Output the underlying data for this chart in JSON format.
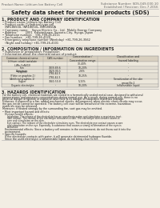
{
  "bg_color": "#f2ede3",
  "header_left": "Product Name: Lithium Ion Battery Cell",
  "header_right_line1": "Substance Number: SDS-049-000-10",
  "header_right_line2": "Established / Revision: Dec.7.2016",
  "title": "Safety data sheet for chemical products (SDS)",
  "section1_title": "1. PRODUCT AND COMPANY IDENTIFICATION",
  "section1_lines": [
    "• Product name: Lithium Ion Battery Cell",
    "• Product code: Cylindrical-type cell",
    "   INR18650U, INR18650L, INR18650A",
    "• Company name:    Sanyo Electric Co., Ltd.  Mobile Energy Company",
    "• Address:         2001  Kamimikawa, Sumoto-City, Hyogo, Japan",
    "• Telephone number:   +81-799-26-4111",
    "• Fax number:   +81-799-26-4120",
    "• Emergency telephone number (Weekday) +81-799-26-3562",
    "   (Night and holiday) +81-799-26-4101"
  ],
  "section2_title": "2. COMPOSITION / INFORMATION ON INGREDIENTS",
  "section2_intro": "• Substance or preparation: Preparation",
  "section2_sub": "• Information about the chemical nature of product:",
  "table_col_names": [
    "Common chemical name",
    "CAS number",
    "Concentration /\nConcentration range",
    "Classification and\nhazard labeling"
  ],
  "table_rows": [
    [
      "Lithium cobalt tantalate\n(LiMn-CoNiO2)",
      "-",
      "30-40%",
      "-"
    ],
    [
      "Iron",
      "7439-89-6",
      "10-20%",
      "-"
    ],
    [
      "Aluminum",
      "7429-90-5",
      "2-6%",
      "-"
    ],
    [
      "Graphite\n(Flake or graphite-1)\n(Artificial graphite-1)",
      "7782-42-5\n7782-42-5",
      "10-25%",
      "-"
    ],
    [
      "Copper",
      "7440-50-8",
      "5-15%",
      "Sensitization of the skin\ngroup No.2"
    ],
    [
      "Organic electrolyte",
      "-",
      "10-20%",
      "Inflammable liquid"
    ]
  ],
  "section3_title": "3. HAZARDS IDENTIFICATION",
  "section3_para1": [
    "For the battery cell, chemical materials are stored in a hermetically sealed metal case, designed to withstand",
    "temperatures and pressures-concentrations during normal use. As a result, during normal use, there is no",
    "physical danger of ignition or explosion and there is no danger of hazardous materials leakage.",
    "However, if exposed to a fire, added mechanical shocks, decomposed, when electric short-circuits may occur,",
    "the gas inside cannot be operated. The battery cell case will be breached of the extreme, hazardous",
    "materials may be released.",
    "Moreover, if heated strongly by the surrounding fire, soot gas may be emitted."
  ],
  "section3_bullet1": "• Most important hazard and effects:",
  "section3_sub1": "Human health effects:",
  "section3_inhal": "Inhalation: The release of the electrolyte has an anesthesia action and stimulates a respiratory tract.",
  "section3_skin1": "Skin contact: The release of the electrolyte stimulates a skin. The electrolyte skin contact causes a",
  "section3_skin2": "sore and stimulation on the skin.",
  "section3_eye1": "Eye contact: The release of the electrolyte stimulates eyes. The electrolyte eye contact causes a sore",
  "section3_eye2": "and stimulation on the eye. Especially, a substance that causes a strong inflammation of the eyes is",
  "section3_eye3": "contained.",
  "section3_env1": "Environmental effects: Since a battery cell remains in the environment, do not throw out it into the",
  "section3_env2": "environment.",
  "section3_bullet2": "• Specific hazards:",
  "section3_sp1": "If the electrolyte contacts with water, it will generate detrimental hydrogen fluoride.",
  "section3_sp2": "Since the used electrolyte is inflammable liquid, do not bring close to fire.",
  "line_color": "#aaaaaa",
  "text_dark": "#222222",
  "text_gray": "#666666",
  "table_header_bg": "#d8d0c0",
  "table_row_bg1": "#ede8dc",
  "table_row_bg2": "#e4dfd3"
}
